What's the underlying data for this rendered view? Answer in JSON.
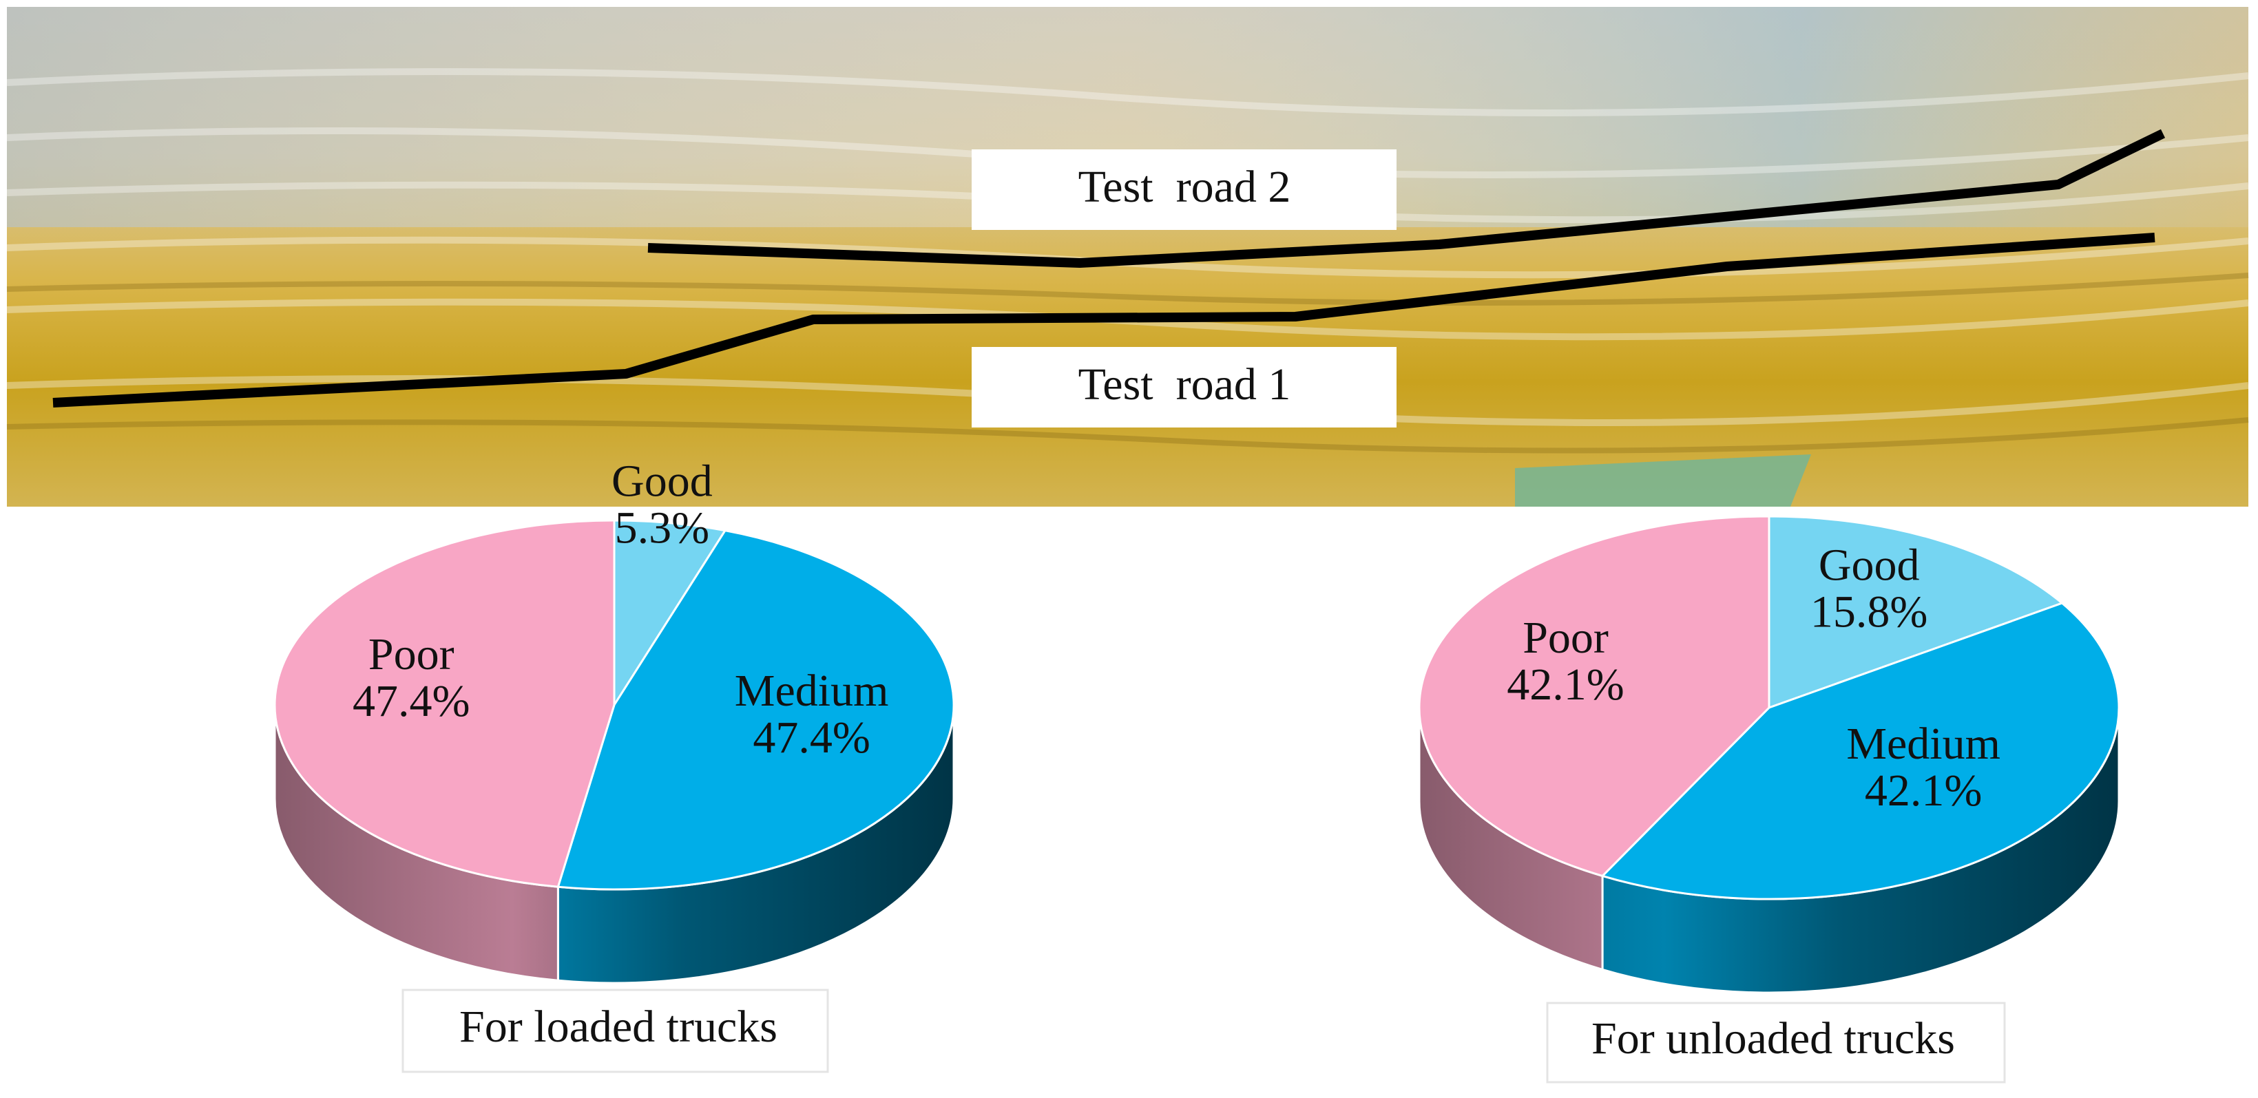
{
  "image": {
    "labels": [
      "Test  road 2",
      "Test  road 1"
    ]
  },
  "chart_data": [
    {
      "type": "pie",
      "title": "For loaded trucks",
      "categories": [
        "Good",
        "Medium",
        "Poor"
      ],
      "values": [
        5.3,
        47.4,
        47.4
      ],
      "value_labels": [
        "5.3%",
        "47.4%",
        "47.4%"
      ],
      "colors": [
        "#75d5f2",
        "#00aee8",
        "#f8a6c5"
      ]
    },
    {
      "type": "pie",
      "title": "For unloaded trucks",
      "categories": [
        "Good",
        "Medium",
        "Poor"
      ],
      "values": [
        15.8,
        42.1,
        42.1
      ],
      "value_labels": [
        "15.8%",
        "42.1%",
        "42.1%"
      ],
      "colors": [
        "#75d5f2",
        "#00aee8",
        "#f8a6c5"
      ]
    }
  ]
}
